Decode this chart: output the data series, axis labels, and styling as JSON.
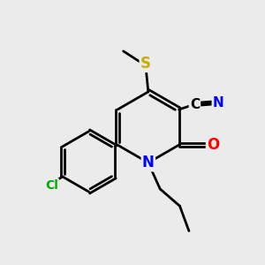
{
  "bg_color": "#ebebeb",
  "bond_color": "#000000",
  "bond_width": 2.0,
  "atom_colors": {
    "N": "#0000ff",
    "O": "#ff0000",
    "S": "#ccaa00",
    "Cl": "#00aa00",
    "C": "#000000"
  },
  "font_size": 11,
  "fig_size": [
    3.0,
    3.0
  ],
  "dpi": 100
}
